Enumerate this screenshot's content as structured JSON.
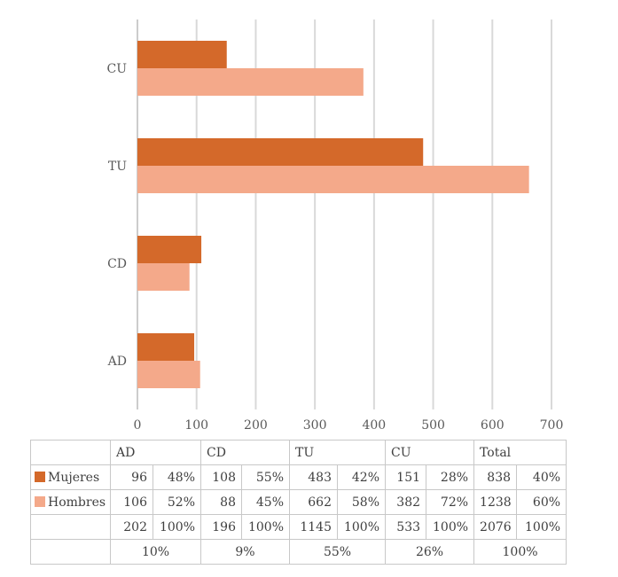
{
  "chart_data": {
    "type": "bar",
    "orientation": "horizontal",
    "categories": [
      "AD",
      "CD",
      "TU",
      "CU"
    ],
    "series": [
      {
        "name": "Mujeres",
        "color": "#d4692a",
        "values": [
          96,
          108,
          483,
          151
        ]
      },
      {
        "name": "Hombres",
        "color": "#f4a98a",
        "values": [
          106,
          88,
          662,
          382
        ]
      }
    ],
    "xlim": [
      0,
      700
    ],
    "xticks": [
      0,
      100,
      200,
      300,
      400,
      500,
      600,
      700
    ],
    "grid": true,
    "legend": "table"
  },
  "table": {
    "headers": [
      "AD",
      "CD",
      "TU",
      "CU",
      "Total"
    ],
    "rows": [
      {
        "label": "Mujeres",
        "color": "#d4692a",
        "cells": [
          "96",
          "48%",
          "108",
          "55%",
          "483",
          "42%",
          "151",
          "28%",
          "838",
          "40%"
        ]
      },
      {
        "label": "Hombres",
        "color": "#f4a98a",
        "cells": [
          "106",
          "52%",
          "88",
          "45%",
          "662",
          "58%",
          "382",
          "72%",
          "1238",
          "60%"
        ]
      },
      {
        "label": "",
        "cells": [
          "202",
          "100%",
          "196",
          "100%",
          "1145",
          "100%",
          "533",
          "100%",
          "2076",
          "100%"
        ]
      }
    ],
    "shares": [
      "10%",
      "9%",
      "55%",
      "26%",
      "100%"
    ]
  }
}
